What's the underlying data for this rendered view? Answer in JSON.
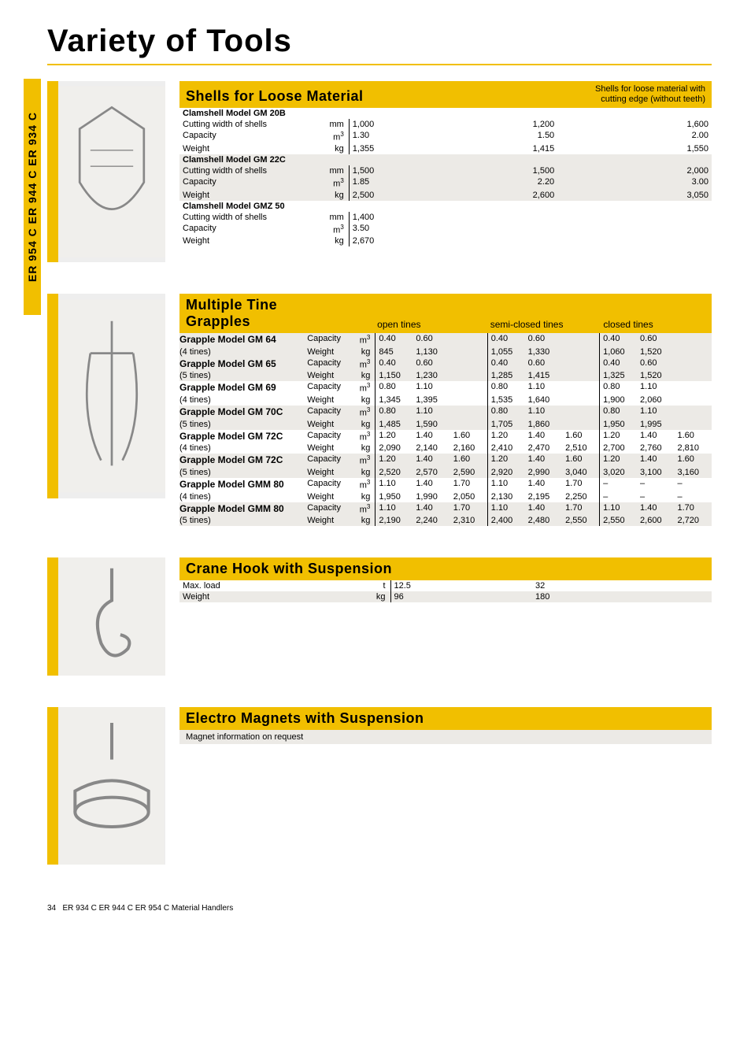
{
  "colors": {
    "accent": "#f1bf00",
    "shade": "#eceae6",
    "text": "#000000",
    "bg": "#ffffff"
  },
  "page_title": "Variety of Tools",
  "side_tab": "ER 954 C  ER 944 C  ER 934 C",
  "shells": {
    "title": "Shells for Loose Material",
    "subtitle_line1": "Shells for loose material with",
    "subtitle_line2": "cutting edge (without teeth)",
    "models": [
      {
        "name": "Clamshell Model GM 20B",
        "rows": [
          {
            "label": "Cutting width of shells",
            "unit": "mm",
            "vals": [
              "1,000",
              "1,200",
              "1,600"
            ]
          },
          {
            "label": "Capacity",
            "unit": "m3",
            "vals": [
              "1.30",
              "1.50",
              "2.00"
            ]
          },
          {
            "label": "Weight",
            "unit": "kg",
            "vals": [
              "1,355",
              "1,415",
              "1,550"
            ]
          }
        ]
      },
      {
        "name": "Clamshell Model GM 22C",
        "rows": [
          {
            "label": "Cutting width of shells",
            "unit": "mm",
            "vals": [
              "1,500",
              "1,500",
              "2,000"
            ]
          },
          {
            "label": "Capacity",
            "unit": "m3",
            "vals": [
              "1.85",
              "2.20",
              "3.00"
            ]
          },
          {
            "label": "Weight",
            "unit": "kg",
            "vals": [
              "2,500",
              "2,600",
              "3,050"
            ]
          }
        ]
      },
      {
        "name": "Clamshell Model GMZ 50",
        "rows": [
          {
            "label": "Cutting width of shells",
            "unit": "mm",
            "vals": [
              "1,400",
              "",
              ""
            ]
          },
          {
            "label": "Capacity",
            "unit": "m3",
            "vals": [
              "3.50",
              "",
              ""
            ]
          },
          {
            "label": "Weight",
            "unit": "kg",
            "vals": [
              "2,670",
              "",
              ""
            ]
          }
        ]
      }
    ]
  },
  "grapples": {
    "title": "Multiple Tine Grapples",
    "head_cols": [
      "open tines",
      "semi-closed tines",
      "closed tines"
    ],
    "models": [
      {
        "name": "Grapple Model GM 64",
        "sub": "(4 tines)",
        "shade": true,
        "cap": [
          "0.40",
          "0.60",
          "",
          "0.40",
          "0.60",
          "",
          "0.40",
          "0.60",
          ""
        ],
        "wt": [
          "845",
          "1,130",
          "",
          "1,055",
          "1,330",
          "",
          "1,060",
          "1,520",
          ""
        ]
      },
      {
        "name": "Grapple Model GM 65",
        "sub": "(5 tines)",
        "shade": true,
        "cap": [
          "0.40",
          "0.60",
          "",
          "0.40",
          "0.60",
          "",
          "0.40",
          "0.60",
          ""
        ],
        "wt": [
          "1,150",
          "1,230",
          "",
          "1,285",
          "1,415",
          "",
          "1,325",
          "1,520",
          ""
        ]
      },
      {
        "name": "Grapple Model GM 69",
        "sub": "(4 tines)",
        "shade": false,
        "cap": [
          "0.80",
          "1.10",
          "",
          "0.80",
          "1.10",
          "",
          "0.80",
          "1.10",
          ""
        ],
        "wt": [
          "1,345",
          "1,395",
          "",
          "1,535",
          "1,640",
          "",
          "1,900",
          "2,060",
          ""
        ]
      },
      {
        "name": "Grapple Model GM 70C",
        "sub": "(5 tines)",
        "shade": true,
        "cap": [
          "0.80",
          "1.10",
          "",
          "0.80",
          "1.10",
          "",
          "0.80",
          "1.10",
          ""
        ],
        "wt": [
          "1,485",
          "1,590",
          "",
          "1,705",
          "1,860",
          "",
          "1,950",
          "1,995",
          ""
        ]
      },
      {
        "name": "Grapple Model GM 72C",
        "sub": "(4 tines)",
        "shade": false,
        "cap": [
          "1.20",
          "1.40",
          "1.60",
          "1.20",
          "1.40",
          "1.60",
          "1.20",
          "1.40",
          "1.60"
        ],
        "wt": [
          "2,090",
          "2,140",
          "2,160",
          "2,410",
          "2,470",
          "2,510",
          "2,700",
          "2,760",
          "2,810"
        ]
      },
      {
        "name": "Grapple Model GM 72C",
        "sub": "(5 tines)",
        "shade": true,
        "cap": [
          "1.20",
          "1.40",
          "1.60",
          "1.20",
          "1.40",
          "1.60",
          "1.20",
          "1.40",
          "1.60"
        ],
        "wt": [
          "2,520",
          "2,570",
          "2,590",
          "2,920",
          "2,990",
          "3,040",
          "3,020",
          "3,100",
          "3,160"
        ]
      },
      {
        "name": "Grapple Model GMM 80",
        "sub": "(4 tines)",
        "shade": false,
        "cap": [
          "1.10",
          "1.40",
          "1.70",
          "1.10",
          "1.40",
          "1.70",
          "–",
          "–",
          "–"
        ],
        "wt": [
          "1,950",
          "1,990",
          "2,050",
          "2,130",
          "2,195",
          "2,250",
          "–",
          "–",
          "–"
        ]
      },
      {
        "name": "Grapple Model GMM 80",
        "sub": "(5 tines)",
        "shade": true,
        "cap": [
          "1.10",
          "1.40",
          "1.70",
          "1.10",
          "1.40",
          "1.70",
          "1.10",
          "1.40",
          "1.70"
        ],
        "wt": [
          "2,190",
          "2,240",
          "2,310",
          "2,400",
          "2,480",
          "2,550",
          "2,550",
          "2,600",
          "2,720"
        ]
      }
    ],
    "param_cap": "Capacity",
    "param_wt": "Weight",
    "unit_cap": "m3",
    "unit_wt": "kg"
  },
  "crane": {
    "title": "Crane Hook with Suspension",
    "rows": [
      {
        "label": "Max. load",
        "unit": "t",
        "vals": [
          "12.5",
          "32"
        ]
      },
      {
        "label": "Weight",
        "unit": "kg",
        "vals": [
          "96",
          "180"
        ]
      }
    ]
  },
  "magnets": {
    "title": "Electro Magnets with Suspension",
    "note": "Magnet information on request"
  },
  "footer_page": "34",
  "footer_text": "ER 934 C  ER 944 C  ER 954 C Material Handlers"
}
